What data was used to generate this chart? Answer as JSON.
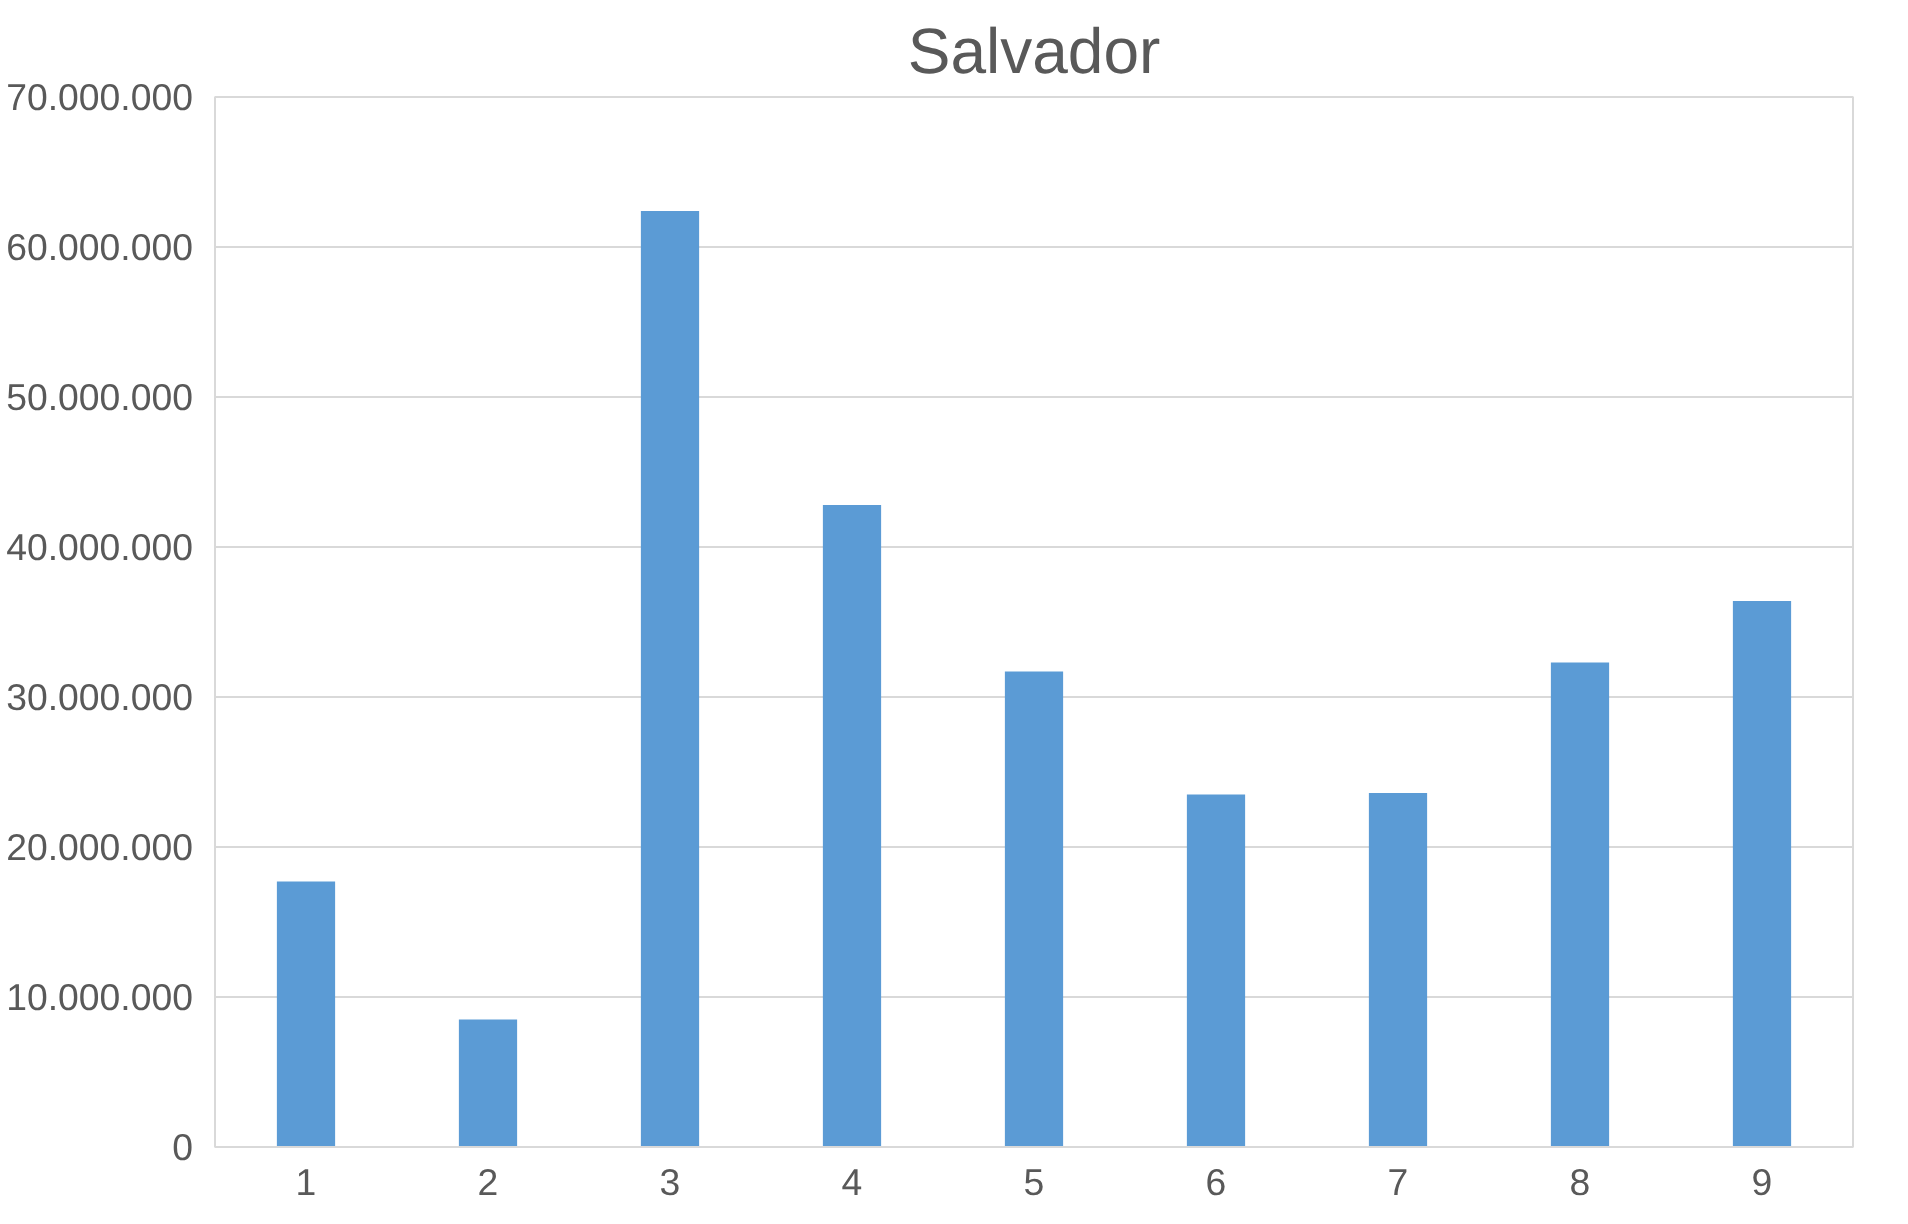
{
  "chart_data": {
    "type": "bar",
    "title": "Salvador",
    "categories": [
      "1",
      "2",
      "3",
      "4",
      "5",
      "6",
      "7",
      "8",
      "9"
    ],
    "values": [
      17700000,
      8500000,
      62400000,
      42800000,
      31700000,
      23500000,
      23600000,
      32300000,
      36400000
    ],
    "color": "#5b9bd5",
    "ylim": [
      0,
      70000000
    ],
    "yticks": [
      0,
      {
        "value": 10000000,
        "label": "10.000.000"
      },
      {
        "value": 20000000,
        "label": "20.000.000"
      },
      {
        "value": 30000000,
        "label": "30.000.000"
      },
      {
        "value": 40000000,
        "label": "40.000.000"
      },
      {
        "value": 50000000,
        "label": "50.000.000"
      },
      {
        "value": 60000000,
        "label": "60.000.000"
      },
      {
        "value": 70000000,
        "label": "70.000.000"
      }
    ],
    "grid": "y"
  }
}
